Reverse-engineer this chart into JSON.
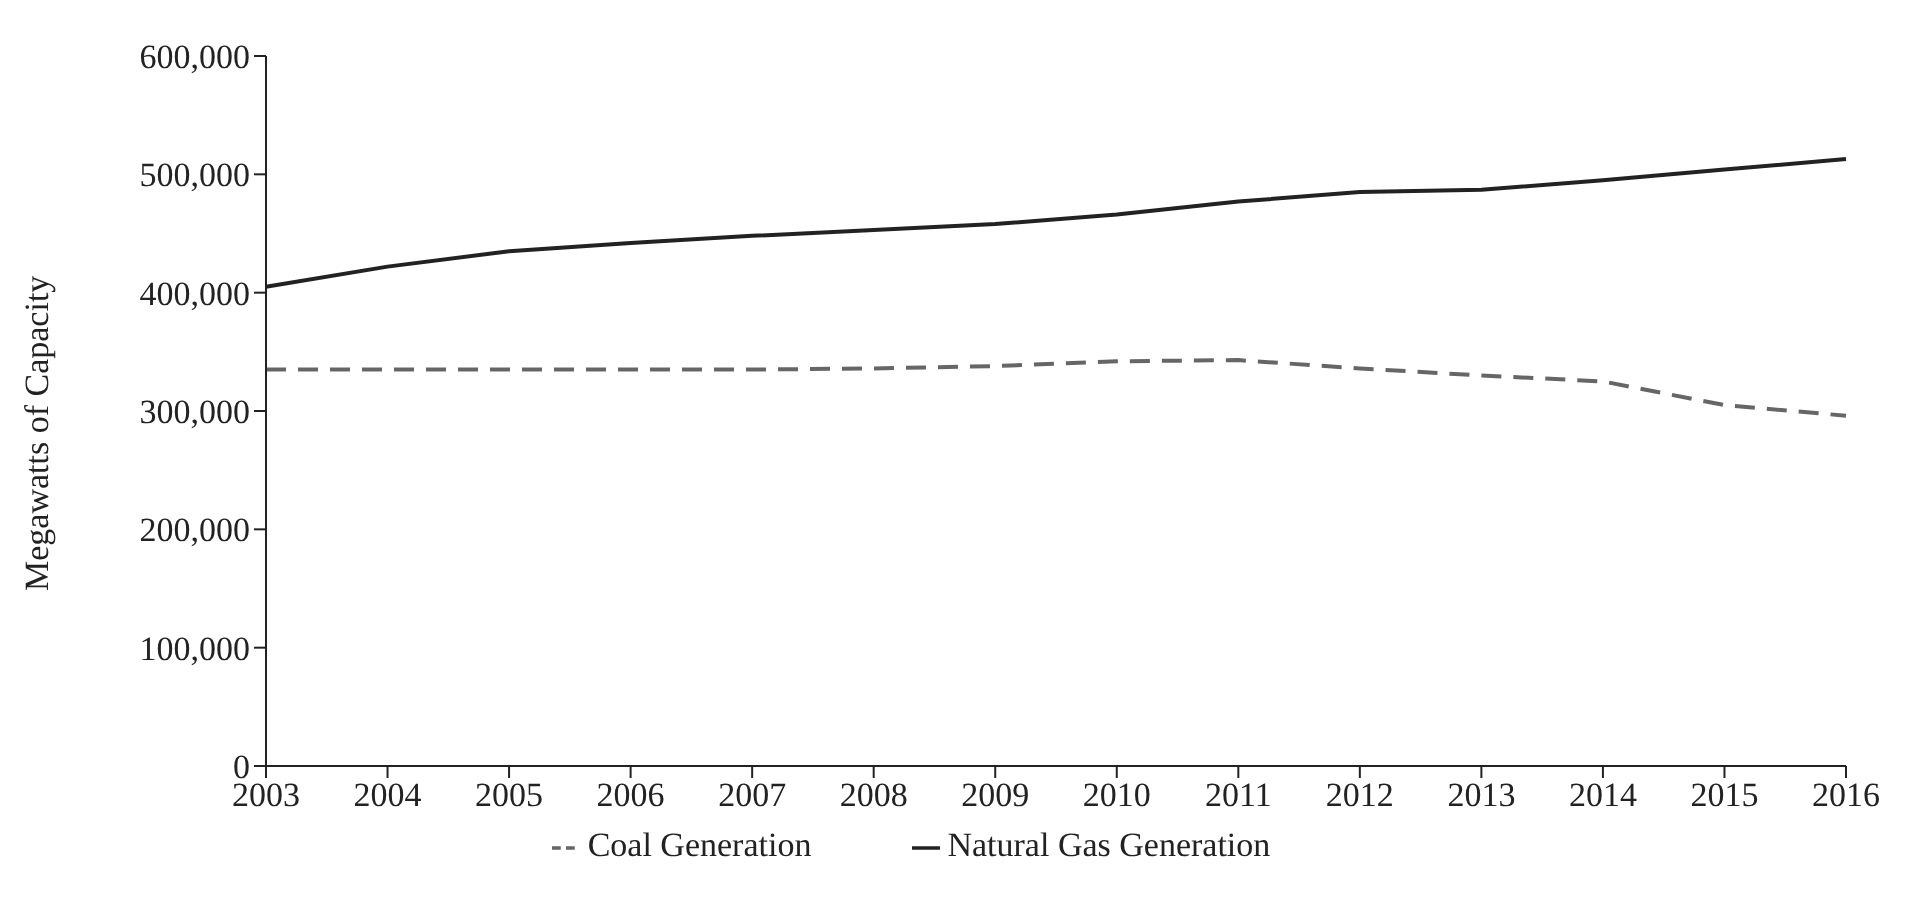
{
  "chart_data": {
    "type": "line",
    "ylabel": "Megawatts of Capacity",
    "categories": [
      "2003",
      "2004",
      "2005",
      "2006",
      "2007",
      "2008",
      "2009",
      "2010",
      "2011",
      "2012",
      "2013",
      "2014",
      "2015",
      "2016"
    ],
    "series": [
      {
        "name": "Coal Generation",
        "color": "#666666",
        "line_style": "dashed",
        "values": [
          335000,
          335000,
          335000,
          335000,
          335000,
          336000,
          338000,
          342000,
          343000,
          336000,
          330000,
          325000,
          305000,
          296000
        ]
      },
      {
        "name": "Natural Gas Generation",
        "color": "#222222",
        "line_style": "solid",
        "values": [
          405000,
          422000,
          435000,
          442000,
          448000,
          453000,
          458000,
          466000,
          477000,
          485000,
          487000,
          495000,
          504000,
          513000
        ]
      }
    ],
    "ylim": [
      0,
      600000
    ],
    "yticks": [
      0,
      {
        "value": 100000,
        "label": "100,000"
      },
      {
        "value": 200000,
        "label": "200,000"
      },
      {
        "value": 300000,
        "label": "300,000"
      },
      {
        "value": 400000,
        "label": "400,000"
      },
      {
        "value": 500000,
        "label": "500,000"
      },
      {
        "value": 600000,
        "label": "600,000"
      }
    ],
    "grid": false,
    "legend": "bottom",
    "marker": "none"
  }
}
